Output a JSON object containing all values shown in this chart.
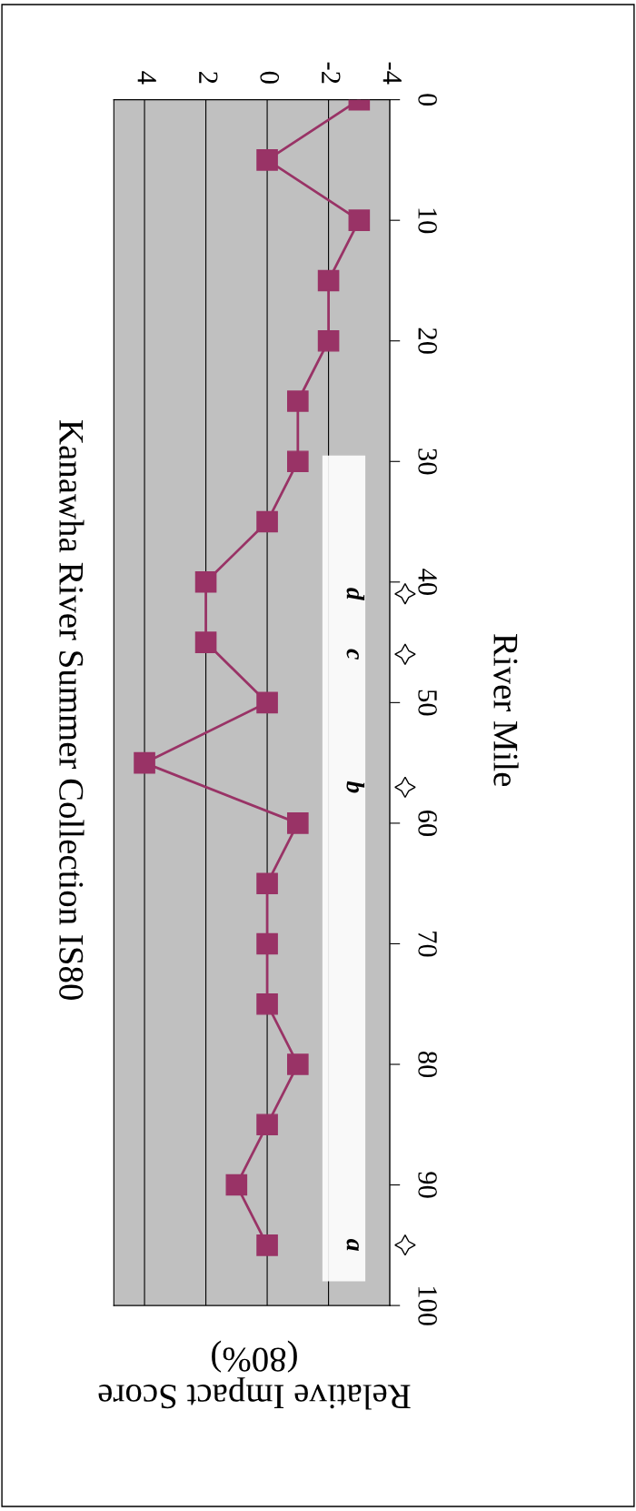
{
  "chart_data": {
    "type": "line",
    "orientation": "horizontal",
    "title": "Kanawha River Summer Collection IS80",
    "ylabel": "River Mile",
    "xlabel": "Relative Impact Score\n(80%)",
    "x": [
      0,
      5,
      10,
      15,
      20,
      25,
      30,
      35,
      40,
      45,
      50,
      55,
      60,
      65,
      70,
      75,
      80,
      85,
      90,
      95
    ],
    "series": [
      {
        "color": "#993366",
        "values": [
          -3,
          0,
          -3,
          -2,
          -2,
          -1,
          -1,
          0,
          2,
          2,
          0,
          4,
          -1,
          0,
          0,
          0,
          -1,
          0,
          1,
          0
        ]
      }
    ],
    "marker": "square",
    "line_style": "solid",
    "grid": "x",
    "ylim": [
      100,
      0
    ],
    "yticks": [
      0,
      10,
      20,
      30,
      40,
      50,
      60,
      70,
      80,
      90,
      100
    ],
    "xlim": [
      5,
      -4
    ],
    "xticks": [
      4,
      2,
      0,
      -2,
      -4
    ],
    "bands": [
      {
        "axis": "y",
        "from": 29.5,
        "to": 98,
        "color": "#ffffff"
      }
    ],
    "annotations": [
      "a",
      "b",
      "c",
      "d"
    ]
  }
}
